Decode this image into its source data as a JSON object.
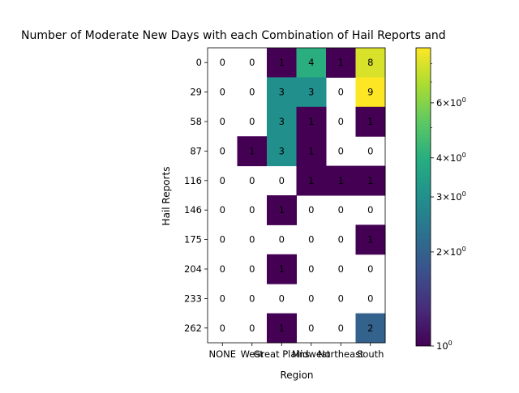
{
  "chart_data": {
    "type": "heatmap",
    "title": "Number of Moderate New Days with each Combination of Hail Reports and",
    "xlabel": "Region",
    "ylabel": "Hail Reports",
    "x_categories": [
      "NONE",
      "West",
      "Great Plains",
      "Midwest",
      "Northeast",
      "South"
    ],
    "y_categories": [
      "0",
      "29",
      "58",
      "87",
      "116",
      "146",
      "175",
      "204",
      "233",
      "262"
    ],
    "values": [
      [
        0,
        0,
        1,
        4,
        1,
        8
      ],
      [
        0,
        0,
        3,
        3,
        0,
        9
      ],
      [
        0,
        0,
        3,
        1,
        0,
        1
      ],
      [
        0,
        1,
        3,
        1,
        0,
        0
      ],
      [
        0,
        0,
        0,
        1,
        1,
        1
      ],
      [
        0,
        0,
        1,
        0,
        0,
        0
      ],
      [
        0,
        0,
        0,
        0,
        0,
        1
      ],
      [
        0,
        0,
        1,
        0,
        0,
        0
      ],
      [
        0,
        0,
        0,
        0,
        0,
        0
      ],
      [
        0,
        0,
        1,
        0,
        0,
        2
      ]
    ],
    "color_scale": "log",
    "colormap": "viridis",
    "zero_cells": "blank",
    "colorbar": {
      "range": [
        1,
        9
      ],
      "ticks": [
        {
          "value": 1,
          "base": "10",
          "exp": "0"
        },
        {
          "value": 2,
          "base": "2×10",
          "exp": "0"
        },
        {
          "value": 3,
          "base": "3×10",
          "exp": "0"
        },
        {
          "value": 4,
          "base": "4×10",
          "exp": "0"
        },
        {
          "value": 6,
          "base": "6×10",
          "exp": "0"
        }
      ],
      "minor_ticks": [
        5,
        7,
        8
      ]
    },
    "grid": false
  }
}
